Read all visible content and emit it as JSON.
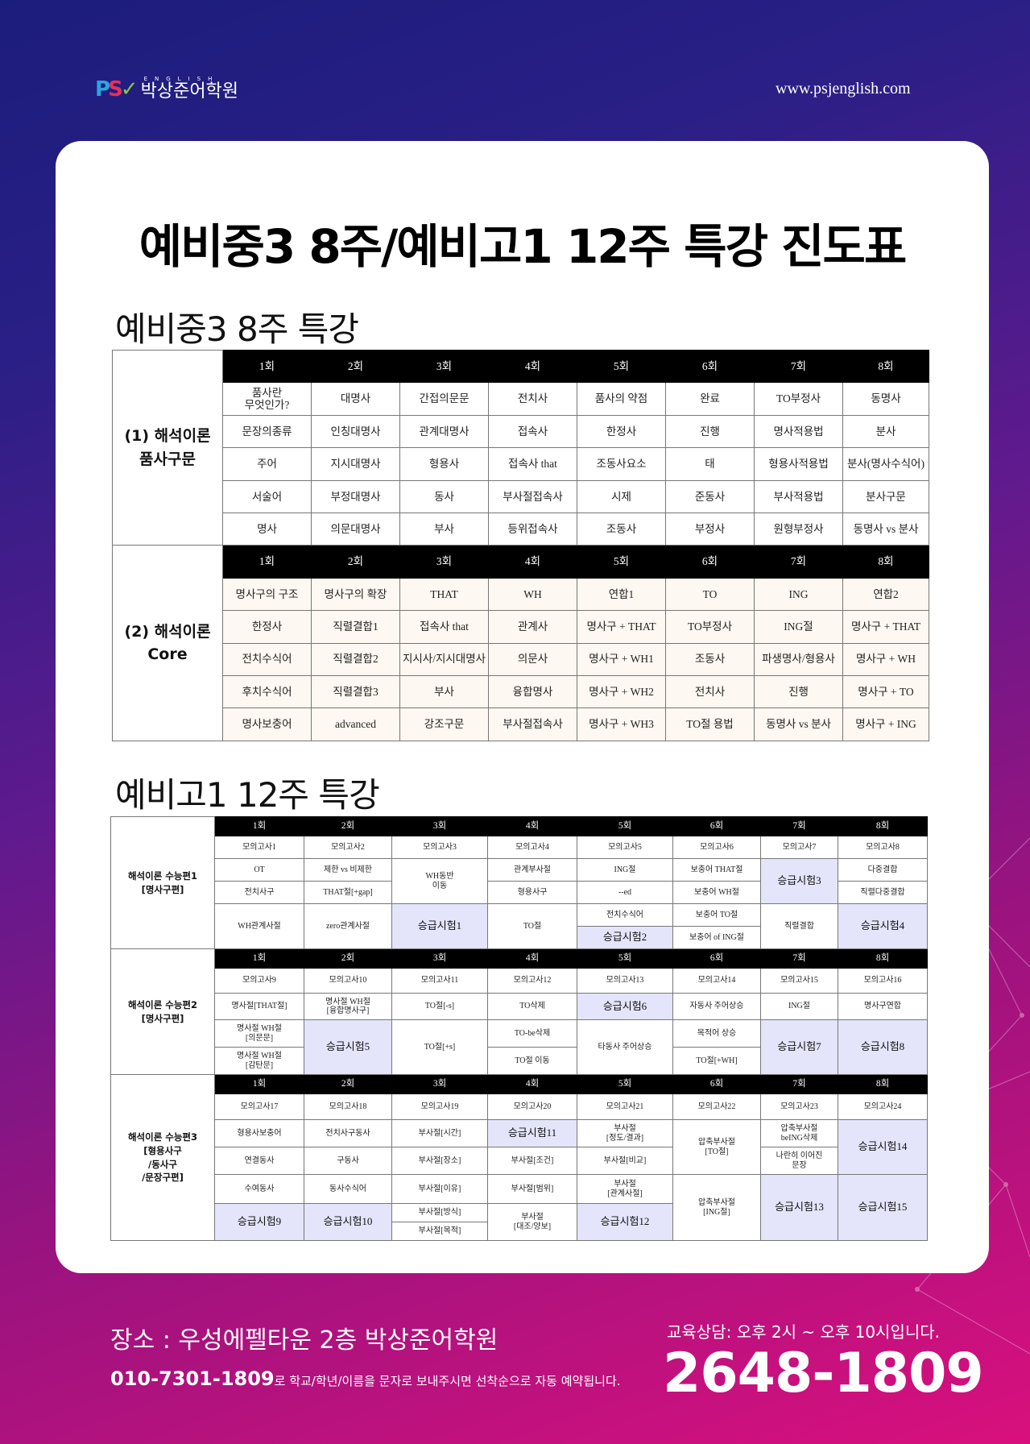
{
  "header": {
    "logo_mark": [
      "P",
      "S",
      "✓"
    ],
    "logo_english": "ENGLISH",
    "logo_name": "박상준어학원",
    "website": "www.psjenglish.com"
  },
  "title": "예비중3 8주/예비고1 12주 특강 진도표",
  "section1": {
    "title": "예비중3 8주 특강",
    "headers": [
      "1회",
      "2회",
      "3회",
      "4회",
      "5회",
      "6회",
      "7회",
      "8회"
    ],
    "blocks": [
      {
        "label": "(1) 해석이론\n품사구문",
        "rows": [
          [
            "품사란\n무엇인가?",
            "대명사",
            "간접의문문",
            "전치사",
            "품사의 약점",
            "완료",
            "TO부정사",
            "동명사"
          ],
          [
            "문장의종류",
            "인칭대명사",
            "관계대명사",
            "접속사",
            "한정사",
            "진행",
            "명사적용법",
            "분사"
          ],
          [
            "주어",
            "지시대명사",
            "형용사",
            "접속사 that",
            "조동사요소",
            "태",
            "형용사적용법",
            "분사(명사수식어)"
          ],
          [
            "서술어",
            "부정대명사",
            "동사",
            "부사절접속사",
            "시제",
            "준동사",
            "부사적용법",
            "분사구문"
          ],
          [
            "명사",
            "의문대명사",
            "부사",
            "등위접속사",
            "조동사",
            "부정사",
            "원형부정사",
            "동명사 vs 분사"
          ]
        ]
      },
      {
        "label": "(2) 해석이론\nCore",
        "rows": [
          [
            "명사구의 구조",
            "명사구의 확장",
            "THAT",
            "WH",
            "연합1",
            "TO",
            "ING",
            "연합2"
          ],
          [
            "한정사",
            "직렬결합1",
            "접속사 that",
            "관계사",
            "명사구 + THAT",
            "TO부정사",
            "ING절",
            "명사구 + THAT"
          ],
          [
            "전치수식어",
            "직렬결합2",
            "지시사/지시대명사",
            "의문사",
            "명사구 + WH1",
            "조동사",
            "파생명사/형용사",
            "명사구 + WH"
          ],
          [
            "후치수식어",
            "직렬결합3",
            "부사",
            "융합명사",
            "명사구 + WH2",
            "전치사",
            "진행",
            "명사구 + TO"
          ],
          [
            "명사보충어",
            "advanced",
            "강조구문",
            "부사절접속사",
            "명사구 + WH3",
            "TO절 용법",
            "동명사 vs 분사",
            "명사구 + ING"
          ]
        ]
      }
    ]
  },
  "section2": {
    "title": "예비고1 12주 특강",
    "headers": [
      "1회",
      "2회",
      "3회",
      "4회",
      "5회",
      "6회",
      "7회",
      "8회"
    ],
    "blocks": [
      {
        "label": "해석이론 수능편1\n[명사구편]",
        "rows": [
          [
            {
              "t": "모의고사1"
            },
            {
              "t": "모의고사2"
            },
            {
              "t": "모의고사3"
            },
            {
              "t": "모의고사4"
            },
            {
              "t": "모의고사5"
            },
            {
              "t": "모의고사6"
            },
            {
              "t": "모의고사7"
            },
            {
              "t": "모의고사8"
            }
          ],
          [
            {
              "t": "OT"
            },
            {
              "t": "제한 vs 비제한"
            },
            {
              "t": "WH동반\n이동",
              "rs": 2
            },
            {
              "t": "관계부사절"
            },
            {
              "t": "ING절"
            },
            {
              "t": "보충어 THAT절"
            },
            {
              "t": "승급시험3",
              "rs": 2,
              "hl": true
            },
            {
              "t": "다중결합"
            }
          ],
          [
            {
              "t": "전치사구"
            },
            {
              "t": "THAT절[+gap]"
            },
            {
              "t": "형용사구"
            },
            {
              "t": "--ed"
            },
            {
              "t": "보충어 WH절"
            },
            {
              "t": "직렬다중결합"
            }
          ],
          [
            {
              "t": "WH관계사절",
              "rs": 2
            },
            {
              "t": "zero관계사절",
              "rs": 2
            },
            {
              "t": "승급시험1",
              "rs": 2,
              "hl": true
            },
            {
              "t": "TO절",
              "rs": 2
            },
            {
              "t": "전치수식어"
            },
            {
              "t": "보충어 TO절"
            },
            {
              "t": "직렬결합",
              "rs": 2
            },
            {
              "t": "승급시험4",
              "rs": 2,
              "hl": true
            }
          ],
          [
            {
              "t": "승급시험2",
              "hl": true
            },
            {
              "t": "보충어 of ING절"
            }
          ]
        ]
      },
      {
        "label": "해석이론 수능편2\n[명사구편]",
        "rows": [
          [
            {
              "t": "모의고사9"
            },
            {
              "t": "모의고사10"
            },
            {
              "t": "모의고사11"
            },
            {
              "t": "모의고사12"
            },
            {
              "t": "모의고사13"
            },
            {
              "t": "모의고사14"
            },
            {
              "t": "모의고사15"
            },
            {
              "t": "모의고사16"
            }
          ],
          [
            {
              "t": "명사절[THAT절]"
            },
            {
              "t": "명사절 WH절\n[융합명사구]"
            },
            {
              "t": "TO절[-s]"
            },
            {
              "t": "TO삭제"
            },
            {
              "t": "승급시험6",
              "hl": true
            },
            {
              "t": "자동사 주어상승"
            },
            {
              "t": "ING절"
            },
            {
              "t": "명사구연합"
            }
          ],
          [
            {
              "t": "명사절 WH절\n[의문문]"
            },
            {
              "t": "승급시험5",
              "rs": 2,
              "hl": true
            },
            {
              "t": "TO절[+s]",
              "rs": 2
            },
            {
              "t": "TO-be삭제"
            },
            {
              "t": "타동사 주어상승",
              "rs": 2
            },
            {
              "t": "목적어 상승"
            },
            {
              "t": "승급시험7",
              "rs": 2,
              "hl": true
            },
            {
              "t": "승급시험8",
              "rs": 2,
              "hl": true
            }
          ],
          [
            {
              "t": "명사절 WH절\n[감탄문]"
            },
            {
              "t": "TO절 이동"
            },
            {
              "t": "TO절[+WH]"
            }
          ]
        ]
      },
      {
        "label": "해석이론 수능편3\n[형용사구\n/동사구\n/문장구편]",
        "rows": [
          [
            {
              "t": "모의고사17"
            },
            {
              "t": "모의고사18"
            },
            {
              "t": "모의고사19"
            },
            {
              "t": "모의고사20"
            },
            {
              "t": "모의고사21"
            },
            {
              "t": "모의고사22"
            },
            {
              "t": "모의고사23"
            },
            {
              "t": "모의고사24"
            }
          ],
          [
            {
              "t": "형용사보충어"
            },
            {
              "t": "전치사구동사"
            },
            {
              "t": "부사절[시간]"
            },
            {
              "t": "승급시험11",
              "hl": true
            },
            {
              "t": "부사절\n[정도/결과]"
            },
            {
              "t": "압축부사절\n[TO절]",
              "rs": 2
            },
            {
              "t": "압축부사절\nbeING삭제"
            },
            {
              "t": "승급시험14",
              "rs": 2,
              "hl": true
            }
          ],
          [
            {
              "t": "연결동사"
            },
            {
              "t": "구동사"
            },
            {
              "t": "부사절[장소]"
            },
            {
              "t": "부사절[조건]"
            },
            {
              "t": "부사절[비교]"
            },
            {
              "t": "나란히 이어진\n문장"
            }
          ],
          [
            {
              "t": "수여동사"
            },
            {
              "t": "동사수식어"
            },
            {
              "t": "부사절[이유]"
            },
            {
              "t": "부사절[범위]"
            },
            {
              "t": "부사절\n[관계사절]"
            },
            {
              "t": "압축부사절\n[ING절]",
              "rs": 3
            },
            {
              "t": "승급시험13",
              "rs": 3,
              "hl": true
            },
            {
              "t": "승급시험15",
              "rs": 3,
              "hl": true
            }
          ],
          [
            {
              "t": "승급시험9",
              "rs": 2,
              "hl": true
            },
            {
              "t": "승급시험10",
              "rs": 2,
              "hl": true
            },
            {
              "t": "부사절[방식]"
            },
            {
              "t": "부사절\n[대조/양보]",
              "rs": 2
            },
            {
              "t": "승급시험12",
              "rs": 2,
              "hl": true
            }
          ],
          [
            {
              "t": "부사절[목적]"
            }
          ]
        ]
      }
    ]
  },
  "footer": {
    "place": "장소 : 우성에펠타운 2층 박상준어학원",
    "sms_number": "010-7301-1809",
    "sms_text": "로 학교/학년/이름을 문자로 보내주시면 선착순으로 자동 예약됩니다.",
    "hours": "교육상담: 오후 2시 ~ 오후 10시입니다.",
    "phone": "2648-1809"
  },
  "colors": {
    "highlight": "#e4e4fb",
    "cream": "#fdf8f1",
    "header_bg": "#000000",
    "bg_top": "#1b1d7c",
    "bg_bottom": "#d9107d"
  }
}
